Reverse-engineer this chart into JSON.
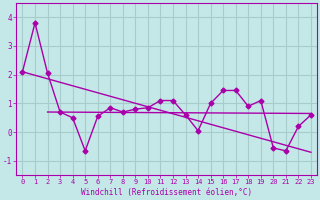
{
  "background_color": "#c4e8e8",
  "grid_color": "#a8cccc",
  "line_color": "#aa00aa",
  "xlabel": "Windchill (Refroidissement éolien,°C)",
  "xlim": [
    -0.5,
    23.5
  ],
  "ylim": [
    -1.5,
    4.5
  ],
  "yticks": [
    -1,
    0,
    1,
    2,
    3,
    4
  ],
  "xticks": [
    0,
    1,
    2,
    3,
    4,
    5,
    6,
    7,
    8,
    9,
    10,
    11,
    12,
    13,
    14,
    15,
    16,
    17,
    18,
    19,
    20,
    21,
    22,
    23
  ],
  "series1_x": [
    0,
    1,
    2,
    3,
    4,
    5,
    6,
    7,
    8,
    9,
    10,
    11,
    12,
    13,
    14,
    15,
    16,
    17,
    18,
    19,
    20,
    21,
    22,
    23
  ],
  "series1_y": [
    2.1,
    3.8,
    2.05,
    0.7,
    0.5,
    -0.65,
    0.55,
    0.85,
    0.7,
    0.8,
    0.85,
    1.1,
    1.1,
    0.6,
    0.05,
    1.0,
    1.45,
    1.45,
    0.9,
    1.1,
    -0.55,
    -0.65,
    0.2,
    0.6
  ],
  "series2_x": [
    0,
    23
  ],
  "series2_y": [
    2.1,
    -0.7
  ],
  "series3_x": [
    2,
    23
  ],
  "series3_y": [
    0.7,
    0.65
  ]
}
